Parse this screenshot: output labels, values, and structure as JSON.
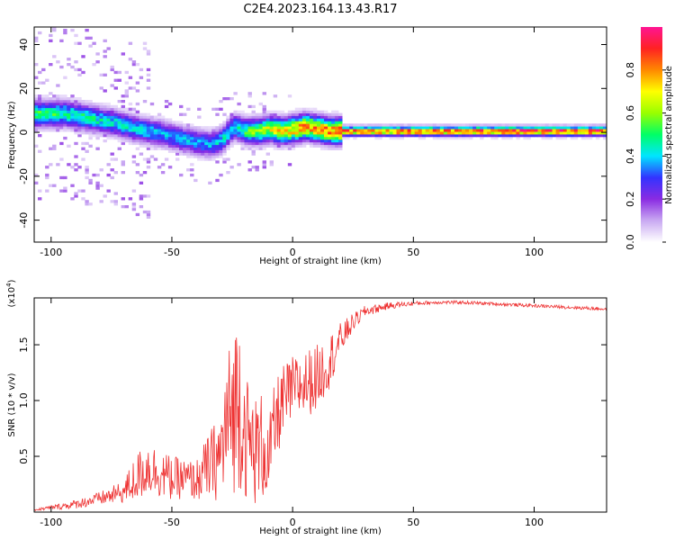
{
  "title": "C2E4.2023.164.13.43.R17",
  "chart_data": [
    {
      "type": "heatmap",
      "xlabel": "Height of straight line (km)",
      "ylabel": "Frequency (Hz)",
      "xlim": [
        -107,
        130
      ],
      "ylim": [
        -50,
        48
      ],
      "xticks": [
        -100,
        -50,
        0,
        50,
        100
      ],
      "yticks": [
        -40,
        -20,
        0,
        20,
        40
      ],
      "colorbar": {
        "label": "Normalized spectral amplitude",
        "range": [
          0,
          1
        ],
        "ticks": [
          "0.0",
          "0.2",
          "0.4",
          "0.6",
          "0.8"
        ],
        "colors": [
          "#ffffff",
          "#c9a9f2",
          "#8a2be2",
          "#3333ff",
          "#00e5ff",
          "#00ff66",
          "#99ff00",
          "#ffff00",
          "#ff8800",
          "#ff2222",
          "#ff1493"
        ]
      },
      "ridge": {
        "x": [
          -105,
          -95,
          -85,
          -75,
          -65,
          -55,
          -45,
          -35,
          -30,
          -25,
          -20,
          -15,
          -10,
          -5,
          0,
          5,
          10,
          15,
          20,
          30,
          60,
          100,
          130
        ],
        "freq": [
          8,
          8,
          6,
          4,
          1,
          -1,
          -4,
          -6,
          -4,
          2,
          0,
          0,
          1,
          0,
          1,
          2,
          1,
          0,
          0,
          0,
          0,
          0,
          0
        ],
        "amplitude": [
          0.55,
          0.5,
          0.5,
          0.45,
          0.45,
          0.4,
          0.4,
          0.4,
          0.45,
          0.45,
          0.55,
          0.65,
          0.7,
          0.75,
          0.8,
          0.85,
          0.85,
          0.85,
          0.9,
          0.9,
          0.95,
          0.95,
          0.95
        ]
      }
    },
    {
      "type": "line",
      "xlabel": "Height of straight line (km)",
      "ylabel": "SNR (10 * v/v)",
      "yscale_label": "(x10",
      "yscale_exp": "4",
      "yscale_close": ")",
      "xlim": [
        -107,
        130
      ],
      "ylim": [
        0,
        1.92
      ],
      "xticks": [
        -100,
        -50,
        0,
        50,
        100
      ],
      "yticks": [
        "0.5",
        "1.0",
        "1.5"
      ],
      "color": "#ee3333",
      "series": [
        {
          "x": [
            -107,
            -100,
            -90,
            -80,
            -75,
            -70,
            -65,
            -60,
            -55,
            -50,
            -45,
            -40,
            -35,
            -30,
            -28,
            -25,
            -22,
            -20,
            -18,
            -15,
            -12,
            -10,
            -8,
            -5,
            0,
            5,
            10,
            15,
            20,
            25,
            30,
            40,
            50,
            60,
            70,
            80,
            90,
            100,
            110,
            120,
            130
          ],
          "y": [
            0.02,
            0.04,
            0.07,
            0.12,
            0.15,
            0.18,
            0.3,
            0.4,
            0.35,
            0.3,
            0.3,
            0.28,
            0.4,
            0.5,
            0.7,
            0.9,
            1.05,
            0.75,
            0.6,
            0.55,
            0.6,
            0.45,
            0.7,
            0.95,
            1.1,
            1.15,
            1.2,
            1.35,
            1.55,
            1.7,
            1.8,
            1.85,
            1.87,
            1.88,
            1.88,
            1.87,
            1.86,
            1.85,
            1.84,
            1.83,
            1.82
          ],
          "noise": [
            0.01,
            0.02,
            0.04,
            0.06,
            0.08,
            0.1,
            0.22,
            0.25,
            0.22,
            0.2,
            0.18,
            0.18,
            0.3,
            0.4,
            0.6,
            0.75,
            0.85,
            0.6,
            0.55,
            0.5,
            0.5,
            0.35,
            0.4,
            0.35,
            0.3,
            0.3,
            0.3,
            0.25,
            0.15,
            0.08,
            0.05,
            0.03,
            0.02,
            0.015,
            0.015,
            0.015,
            0.015,
            0.015,
            0.015,
            0.015,
            0.015
          ]
        }
      ]
    }
  ]
}
